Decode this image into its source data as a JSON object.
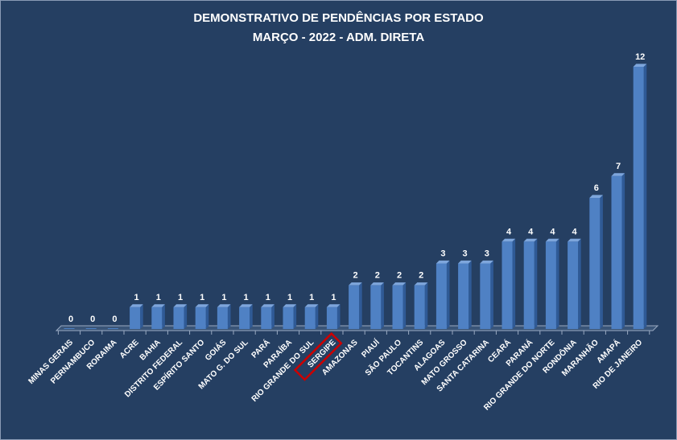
{
  "chart_data": {
    "type": "bar",
    "title": "DEMONSTRATIVO DE PENDÊNCIAS POR ESTADO",
    "subtitle": "MARÇO - 2022 - ADM. DIRETA",
    "categories": [
      "MINAS GERAIS",
      "PERNAMBUCO",
      "RORAIMA",
      "ACRE",
      "BAHIA",
      "DISTRITO FEDERAL",
      "ESPÍRITO SANTO",
      "GOIÁS",
      "MATO G. DO SUL",
      "PARÁ",
      "PARAÍBA",
      "RIO GRANDE DO SUL",
      "SERGIPE",
      "AMAZONAS",
      "PIAUÍ",
      "SÃO PAULO",
      "TOCANTINS",
      "ALAGOAS",
      "MATO GROSSO",
      "SANTA CATARINA",
      "CEARÁ",
      "PARANÁ",
      "RIO GRANDE DO NORTE",
      "RONDÔNIA",
      "MARANHÃO",
      "AMAPÁ",
      "RIO DE JANEIRO"
    ],
    "values": [
      0,
      0,
      0,
      1,
      1,
      1,
      1,
      1,
      1,
      1,
      1,
      1,
      1,
      2,
      2,
      2,
      2,
      3,
      3,
      3,
      4,
      4,
      4,
      4,
      6,
      7,
      12
    ],
    "data_labels": [
      "0",
      "0",
      "0",
      "1",
      "1",
      "1",
      "1",
      "1",
      "1",
      "1",
      "1",
      "1",
      "1",
      "2",
      "2",
      "2",
      "2",
      "3",
      "3",
      "3",
      "4",
      "4",
      "4",
      "4",
      "6",
      "7",
      "12"
    ],
    "highlighted_category": "SERGIPE",
    "ylim": [
      0,
      12
    ],
    "grid": false,
    "legend": "none",
    "colors": {
      "background": "#253f62",
      "bar_front": "#4f81c4",
      "bar_side": "#2f5a96",
      "bar_top": "#7ea6dc",
      "highlight_box": "#cc0000",
      "text": "#ffffff"
    }
  }
}
